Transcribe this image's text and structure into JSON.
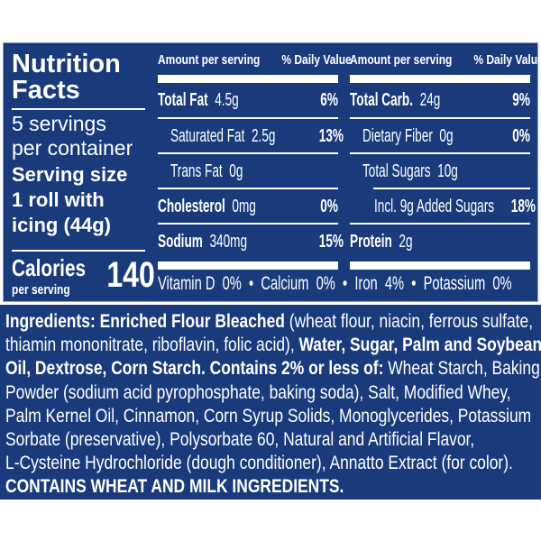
{
  "label": {
    "title_line1": "Nutrition",
    "title_line2": "Facts",
    "servings_line1": "5 servings",
    "servings_line2": "per container",
    "serving_size_label": "Serving size",
    "serving_size_line1": "1 roll with",
    "serving_size_line2": "icing (44g)",
    "calories_label": "Calories",
    "calories_sub": "per serving",
    "calories_value": "140",
    "header_amount": "Amount per serving",
    "header_dv": "% Daily Value",
    "left_rows": [
      {
        "name": "Total Fat",
        "amount": "4.5g",
        "dv": "6%"
      },
      {
        "name": "Saturated Fat",
        "amount": "2.5g",
        "dv": "13%"
      },
      {
        "name": "Trans Fat",
        "amount": "0g",
        "dv": ""
      },
      {
        "name": "Cholesterol",
        "amount": "0mg",
        "dv": "0%"
      },
      {
        "name": "Sodium",
        "amount": "340mg",
        "dv": "15%"
      }
    ],
    "right_rows": [
      {
        "name": "Total Carb.",
        "amount": "24g",
        "dv": "9%"
      },
      {
        "name": "Dietary Fiber",
        "amount": "0g",
        "dv": "0%"
      },
      {
        "name": "Total Sugars",
        "amount": "10g",
        "dv": ""
      },
      {
        "name": "Incl. 9g Added Sugars",
        "amount": "",
        "dv": "18%"
      },
      {
        "name": "Protein",
        "amount": "2g",
        "dv": ""
      }
    ],
    "micronutrients": "Vitamin D  0%  •  Calcium  0%  •  Iron  4%  •  Potassium  0%"
  },
  "ingredients": {
    "lines": [
      [
        {
          "t": "Ingredients: Enriched Flour Bleached ",
          "b": true
        },
        {
          "t": "(wheat flour, niacin, ferrous sulfate,",
          "b": false
        }
      ],
      [
        {
          "t": "thiamin mononitrate, riboflavin, folic acid), ",
          "b": false
        },
        {
          "t": "Water, Sugar, Palm and Soybean",
          "b": true
        }
      ],
      [
        {
          "t": "Oil, Dextrose, Corn Starch. Contains 2% or less of: ",
          "b": true
        },
        {
          "t": "Wheat Starch, Baking",
          "b": false
        }
      ],
      [
        {
          "t": "Powder (sodium acid pyrophosphate, baking soda), Salt, Modified Whey,",
          "b": false
        }
      ],
      [
        {
          "t": "Palm Kernel Oil, Cinnamon, Corn Syrup Solids, Monoglycerides, Potassium",
          "b": false
        }
      ],
      [
        {
          "t": "Sorbate (preservative), Polysorbate 60, Natural and Artificial Flavor,",
          "b": false
        }
      ],
      [
        {
          "t": "L-Cysteine Hydrochloride (dough conditioner), Annatto Extract (for color).",
          "b": false
        }
      ],
      [
        {
          "t": "CONTAINS WHEAT AND MILK INGREDIENTS.",
          "b": true
        }
      ]
    ]
  },
  "colors": {
    "panel": "#1a3b7b",
    "text": "#ffffff"
  }
}
